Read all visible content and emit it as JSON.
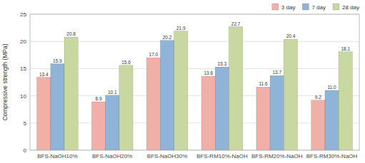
{
  "chart_data": {
    "type": "bar",
    "categories": [
      "BFS-NaOH10%",
      "BFS-NaOH20%",
      "BFS-NaOH30%",
      "BFS-RM10%-NaOH",
      "BFS-RM20%-NaOH",
      "BFS-RM30%-NaOH"
    ],
    "series": [
      {
        "name": "3 day",
        "color": "#f0b0a8",
        "values": [
          13.4,
          8.9,
          17.0,
          13.6,
          11.6,
          9.2
        ],
        "value_labels": [
          "13.4",
          "8.9",
          "17.0",
          "13.6",
          "11.6",
          "9.2"
        ]
      },
      {
        "name": "7 day",
        "color": "#8fb4d8",
        "values": [
          15.9,
          10.1,
          20.2,
          15.3,
          13.7,
          11.0
        ],
        "value_labels": [
          "15.9",
          "10.1",
          "20.2",
          "15.3",
          "13.7",
          "11.0"
        ]
      },
      {
        "name": "28 day",
        "color": "#c8d8a0",
        "values": [
          20.8,
          15.6,
          21.9,
          22.7,
          20.4,
          18.1
        ],
        "value_labels": [
          "20.8",
          "15.6",
          "21.9",
          "22.7",
          "20.4",
          "18.1"
        ]
      }
    ],
    "ylabel": "Compressive strength (MPa)",
    "ylim": [
      0,
      25
    ],
    "yticks": [
      0,
      5,
      10,
      15,
      20,
      25
    ],
    "grid": true,
    "legend": "upper right",
    "data_labels": true
  }
}
